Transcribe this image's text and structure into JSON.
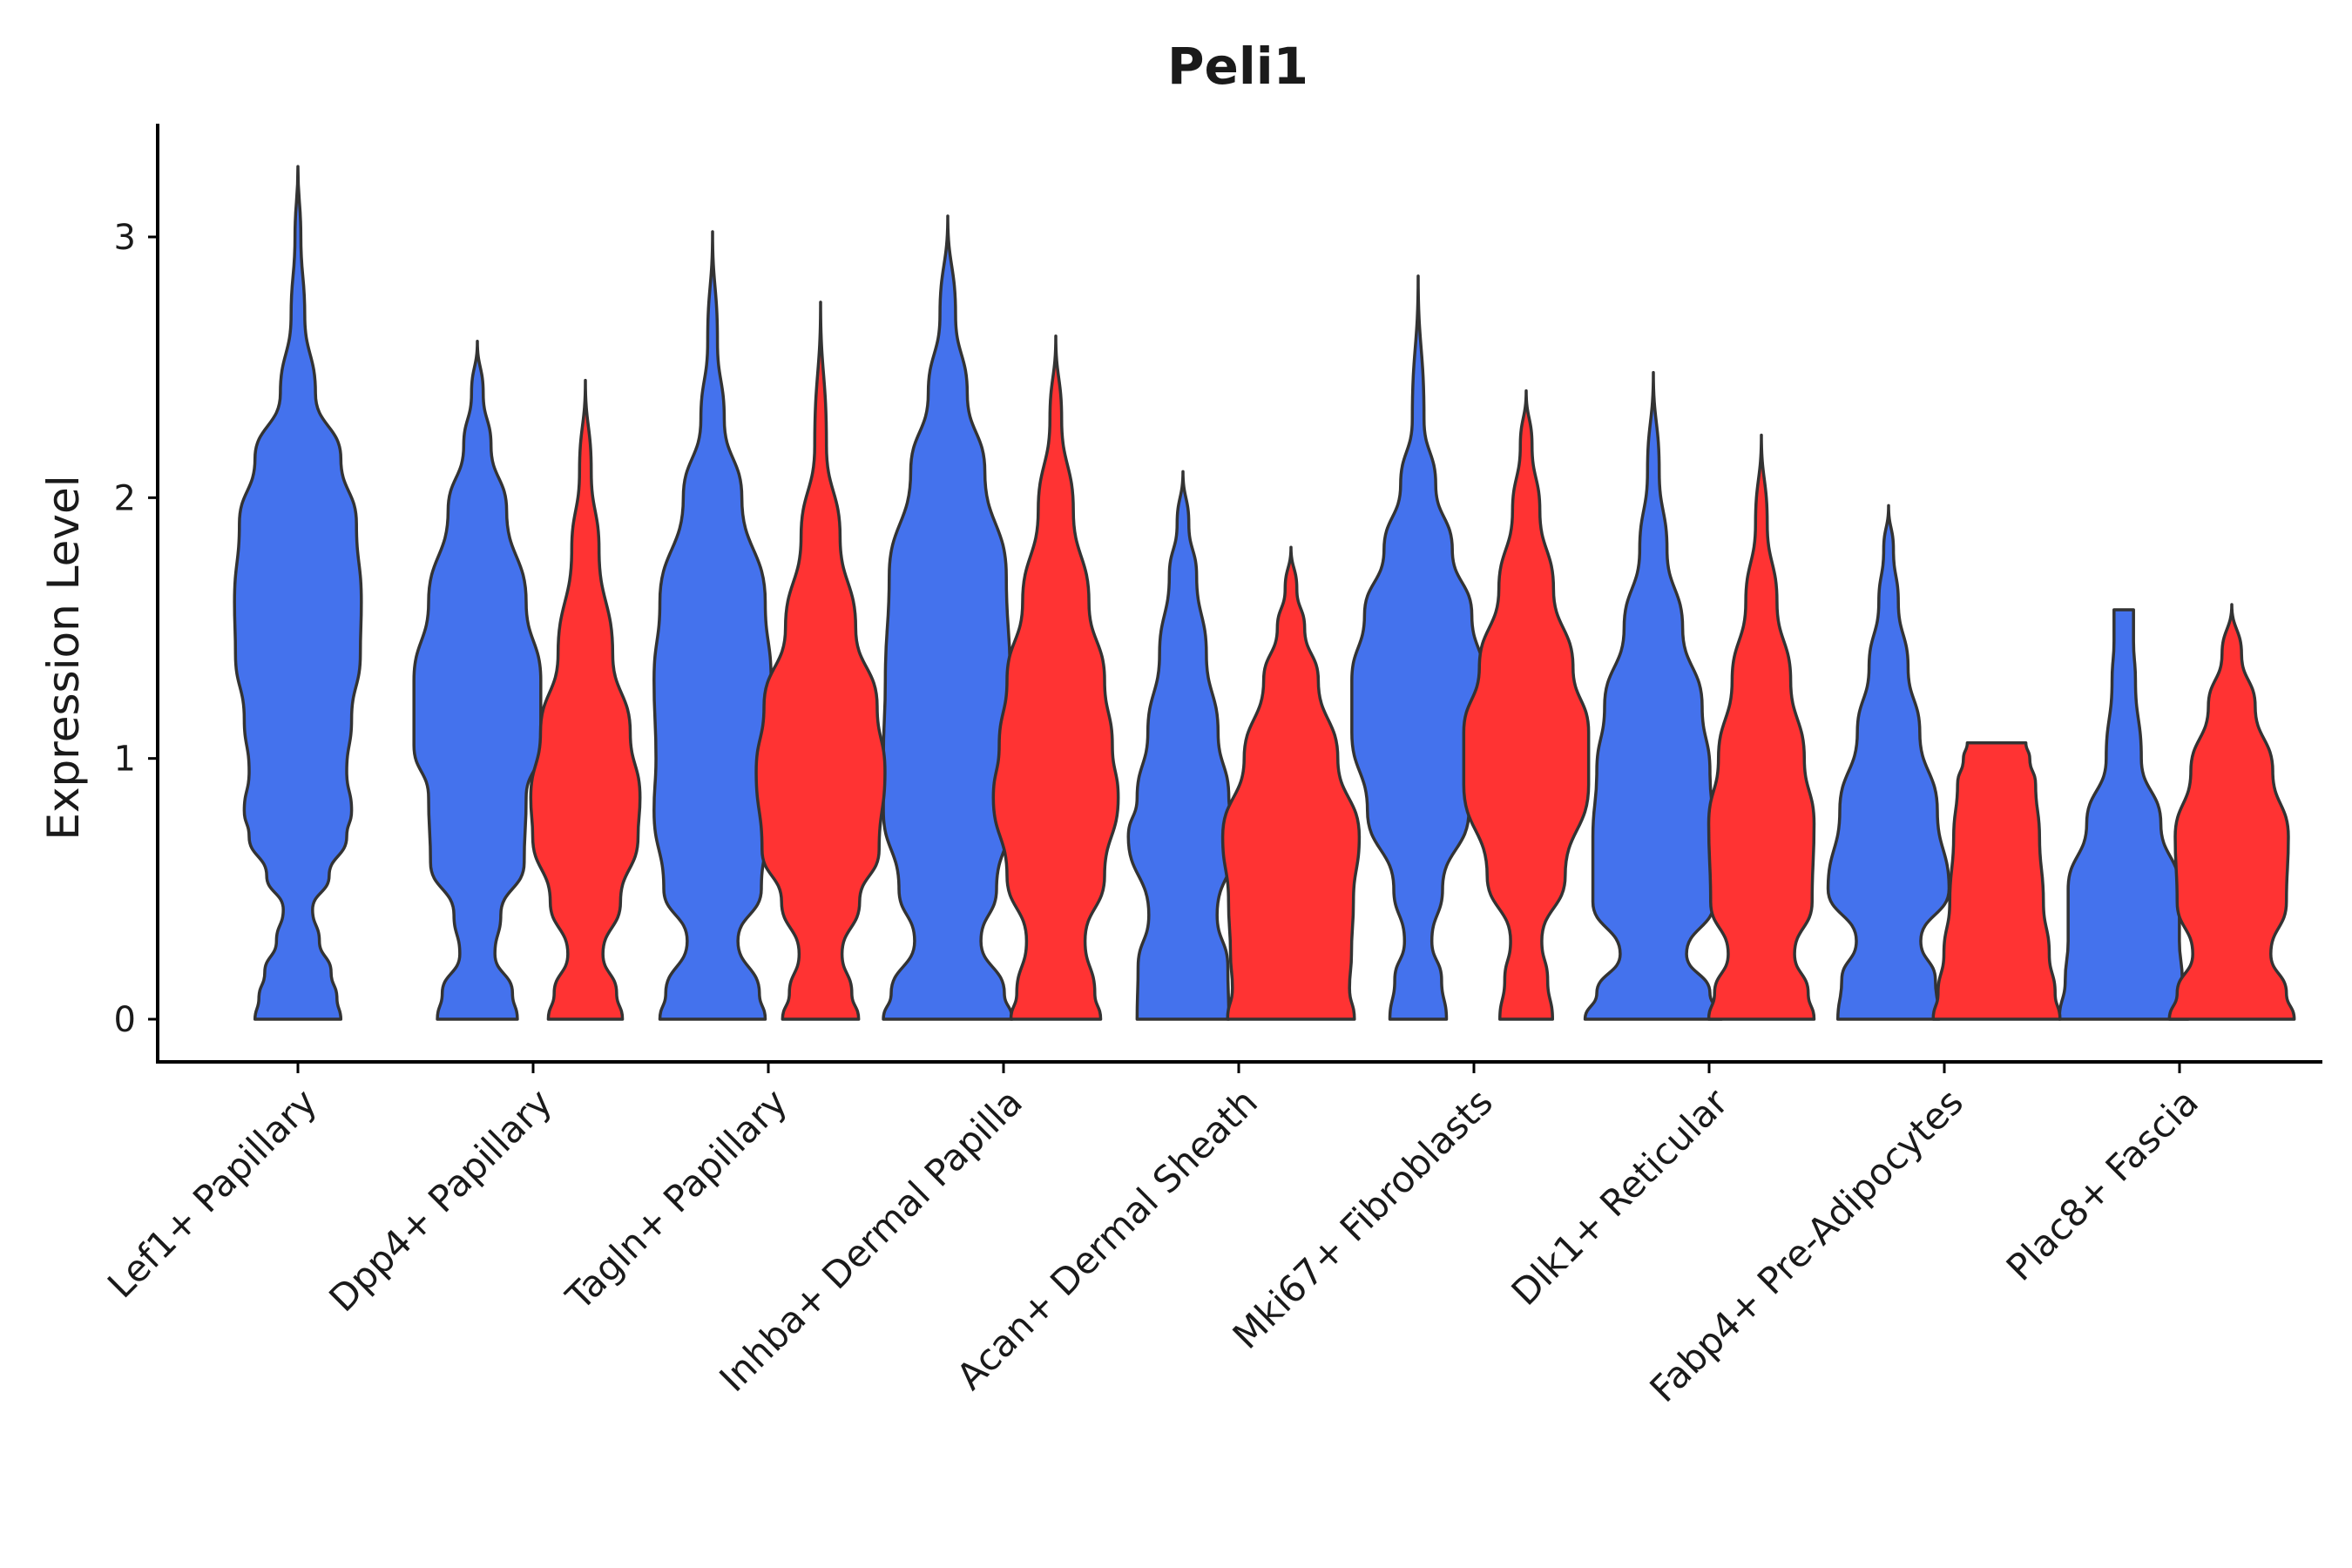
{
  "chart_data": {
    "type": "violin",
    "title": "Peli1",
    "xlabel": "",
    "ylabel": "Expression Level",
    "ylim": [
      -0.17,
      3.45
    ],
    "yticks": [
      0,
      1,
      2,
      3
    ],
    "colors": {
      "blue": "#4472ED",
      "red": "#FF3333",
      "outline": "#333333"
    },
    "categories": [
      "Lef1+ Papillary",
      "Dpp4+ Papillary",
      "Tagln+ Papillary",
      "Inhba+ Dermal Papilla",
      "Acan+ Dermal Sheath",
      "Mki67+ Fibroblasts",
      "Dlk1+ Reticular",
      "Fabp4+ Pre-Adipocytes",
      "Plac8+ Fascia"
    ],
    "series": [
      {
        "name": "blue",
        "violins": [
          {
            "category": "Lef1+ Papillary",
            "max": 3.27,
            "profile": [
              [
                0,
                0.44
              ],
              [
                0.08,
                0.4
              ],
              [
                0.18,
                0.34
              ],
              [
                0.3,
                0.22
              ],
              [
                0.42,
                0.15
              ],
              [
                0.55,
                0.32
              ],
              [
                0.7,
                0.5
              ],
              [
                0.8,
                0.55
              ],
              [
                0.95,
                0.5
              ],
              [
                1.15,
                0.55
              ],
              [
                1.4,
                0.64
              ],
              [
                1.6,
                0.65
              ],
              [
                1.9,
                0.6
              ],
              [
                2.15,
                0.44
              ],
              [
                2.4,
                0.18
              ],
              [
                2.7,
                0.07
              ],
              [
                3.0,
                0.03
              ],
              [
                3.27,
                0
              ]
            ]
          },
          {
            "category": "Dpp4+ Papillary",
            "max": 2.6,
            "profile": [
              [
                0,
                0.41
              ],
              [
                0.1,
                0.36
              ],
              [
                0.25,
                0.18
              ],
              [
                0.4,
                0.24
              ],
              [
                0.6,
                0.48
              ],
              [
                0.85,
                0.5
              ],
              [
                1.05,
                0.65
              ],
              [
                1.3,
                0.65
              ],
              [
                1.6,
                0.5
              ],
              [
                1.95,
                0.3
              ],
              [
                2.2,
                0.14
              ],
              [
                2.4,
                0.06
              ],
              [
                2.6,
                0
              ]
            ]
          },
          {
            "category": "Tagln+ Papillary",
            "max": 3.02,
            "profile": [
              [
                0,
                0.54
              ],
              [
                0.1,
                0.48
              ],
              [
                0.3,
                0.26
              ],
              [
                0.5,
                0.5
              ],
              [
                0.8,
                0.6
              ],
              [
                1.0,
                0.58
              ],
              [
                1.3,
                0.6
              ],
              [
                1.6,
                0.54
              ],
              [
                2.0,
                0.3
              ],
              [
                2.3,
                0.12
              ],
              [
                2.6,
                0.05
              ],
              [
                3.02,
                0
              ]
            ]
          },
          {
            "category": "Inhba+ Dermal Papilla",
            "max": 3.08,
            "profile": [
              [
                0,
                0.66
              ],
              [
                0.1,
                0.58
              ],
              [
                0.3,
                0.34
              ],
              [
                0.5,
                0.5
              ],
              [
                0.8,
                0.66
              ],
              [
                1.0,
                0.66
              ],
              [
                1.3,
                0.64
              ],
              [
                1.7,
                0.6
              ],
              [
                2.1,
                0.38
              ],
              [
                2.4,
                0.2
              ],
              [
                2.7,
                0.08
              ],
              [
                3.08,
                0
              ]
            ]
          },
          {
            "category": "Acan+ Dermal Sheath",
            "max": 2.1,
            "profile": [
              [
                0,
                0.47
              ],
              [
                0.2,
                0.46
              ],
              [
                0.4,
                0.35
              ],
              [
                0.7,
                0.56
              ],
              [
                0.85,
                0.47
              ],
              [
                1.1,
                0.36
              ],
              [
                1.4,
                0.24
              ],
              [
                1.7,
                0.14
              ],
              [
                1.9,
                0.06
              ],
              [
                2.1,
                0
              ]
            ]
          },
          {
            "category": "Mki67+ Fibroblasts",
            "max": 2.85,
            "profile": [
              [
                0,
                0.29
              ],
              [
                0.15,
                0.24
              ],
              [
                0.3,
                0.14
              ],
              [
                0.5,
                0.25
              ],
              [
                0.8,
                0.52
              ],
              [
                1.1,
                0.68
              ],
              [
                1.3,
                0.68
              ],
              [
                1.55,
                0.55
              ],
              [
                1.8,
                0.35
              ],
              [
                2.05,
                0.18
              ],
              [
                2.3,
                0.06
              ],
              [
                2.85,
                0
              ]
            ]
          },
          {
            "category": "Dlk1+ Reticular",
            "max": 2.48,
            "profile": [
              [
                0,
                0.7
              ],
              [
                0.1,
                0.58
              ],
              [
                0.25,
                0.34
              ],
              [
                0.45,
                0.62
              ],
              [
                0.7,
                0.62
              ],
              [
                0.95,
                0.58
              ],
              [
                1.2,
                0.5
              ],
              [
                1.5,
                0.3
              ],
              [
                1.8,
                0.14
              ],
              [
                2.1,
                0.06
              ],
              [
                2.48,
                0
              ]
            ]
          },
          {
            "category": "Fabp4+ Pre-Adipocytes",
            "max": 1.97,
            "profile": [
              [
                0,
                0.52
              ],
              [
                0.15,
                0.48
              ],
              [
                0.3,
                0.33
              ],
              [
                0.5,
                0.62
              ],
              [
                0.8,
                0.5
              ],
              [
                1.1,
                0.32
              ],
              [
                1.35,
                0.2
              ],
              [
                1.6,
                0.1
              ],
              [
                1.8,
                0.05
              ],
              [
                1.97,
                0
              ]
            ]
          },
          {
            "category": "Plac8+ Fascia",
            "max": 1.57,
            "profile": [
              [
                0,
                0.66
              ],
              [
                0.15,
                0.6
              ],
              [
                0.3,
                0.57
              ],
              [
                0.5,
                0.57
              ],
              [
                0.75,
                0.38
              ],
              [
                1.0,
                0.18
              ],
              [
                1.3,
                0.12
              ],
              [
                1.45,
                0.1
              ],
              [
                1.57,
                0.1
              ]
            ]
          }
        ]
      },
      {
        "name": "red",
        "violins": [
          {
            "category": "Dpp4+ Papillary",
            "max": 2.45,
            "profile": [
              [
                0,
                0.38
              ],
              [
                0.1,
                0.32
              ],
              [
                0.25,
                0.18
              ],
              [
                0.45,
                0.36
              ],
              [
                0.7,
                0.54
              ],
              [
                0.85,
                0.56
              ],
              [
                1.1,
                0.46
              ],
              [
                1.4,
                0.28
              ],
              [
                1.8,
                0.14
              ],
              [
                2.1,
                0.06
              ],
              [
                2.45,
                0
              ]
            ]
          },
          {
            "category": "Tagln+ Papillary",
            "max": 2.75,
            "profile": [
              [
                0,
                0.39
              ],
              [
                0.1,
                0.32
              ],
              [
                0.25,
                0.22
              ],
              [
                0.45,
                0.4
              ],
              [
                0.65,
                0.6
              ],
              [
                0.95,
                0.66
              ],
              [
                1.2,
                0.58
              ],
              [
                1.5,
                0.36
              ],
              [
                1.85,
                0.2
              ],
              [
                2.2,
                0.06
              ],
              [
                2.75,
                0
              ]
            ]
          },
          {
            "category": "Inhba+ Dermal Papilla",
            "max": 2.62,
            "profile": [
              [
                0,
                0.46
              ],
              [
                0.1,
                0.4
              ],
              [
                0.3,
                0.3
              ],
              [
                0.55,
                0.5
              ],
              [
                0.85,
                0.64
              ],
              [
                1.05,
                0.58
              ],
              [
                1.3,
                0.5
              ],
              [
                1.6,
                0.34
              ],
              [
                1.95,
                0.18
              ],
              [
                2.3,
                0.06
              ],
              [
                2.62,
                0
              ]
            ]
          },
          {
            "category": "Acan+ Dermal Sheath",
            "max": 1.81,
            "profile": [
              [
                0,
                0.65
              ],
              [
                0.12,
                0.6
              ],
              [
                0.25,
                0.62
              ],
              [
                0.45,
                0.64
              ],
              [
                0.7,
                0.7
              ],
              [
                1.0,
                0.48
              ],
              [
                1.3,
                0.28
              ],
              [
                1.5,
                0.14
              ],
              [
                1.65,
                0.06
              ],
              [
                1.81,
                0
              ]
            ]
          },
          {
            "category": "Mki67+ Fibroblasts",
            "max": 2.41,
            "profile": [
              [
                0,
                0.27
              ],
              [
                0.15,
                0.22
              ],
              [
                0.3,
                0.16
              ],
              [
                0.55,
                0.4
              ],
              [
                0.9,
                0.64
              ],
              [
                1.1,
                0.64
              ],
              [
                1.35,
                0.48
              ],
              [
                1.65,
                0.28
              ],
              [
                1.95,
                0.14
              ],
              [
                2.2,
                0.06
              ],
              [
                2.41,
                0
              ]
            ]
          },
          {
            "category": "Dlk1+ Reticular",
            "max": 2.24,
            "profile": [
              [
                0,
                0.54
              ],
              [
                0.1,
                0.48
              ],
              [
                0.25,
                0.34
              ],
              [
                0.45,
                0.52
              ],
              [
                0.75,
                0.54
              ],
              [
                1.0,
                0.44
              ],
              [
                1.3,
                0.3
              ],
              [
                1.6,
                0.16
              ],
              [
                1.9,
                0.06
              ],
              [
                2.24,
                0
              ]
            ]
          },
          {
            "category": "Fabp4+ Pre-Adipocytes",
            "max": 1.06,
            "profile": [
              [
                0,
                0.65
              ],
              [
                0.1,
                0.6
              ],
              [
                0.25,
                0.54
              ],
              [
                0.45,
                0.48
              ],
              [
                0.7,
                0.44
              ],
              [
                0.9,
                0.4
              ],
              [
                1.0,
                0.34
              ],
              [
                1.06,
                0.3
              ]
            ]
          },
          {
            "category": "Plac8+ Fascia",
            "max": 1.59,
            "profile": [
              [
                0,
                0.64
              ],
              [
                0.1,
                0.56
              ],
              [
                0.25,
                0.4
              ],
              [
                0.45,
                0.56
              ],
              [
                0.7,
                0.58
              ],
              [
                0.95,
                0.42
              ],
              [
                1.2,
                0.24
              ],
              [
                1.4,
                0.1
              ],
              [
                1.59,
                0
              ]
            ]
          }
        ]
      }
    ]
  }
}
